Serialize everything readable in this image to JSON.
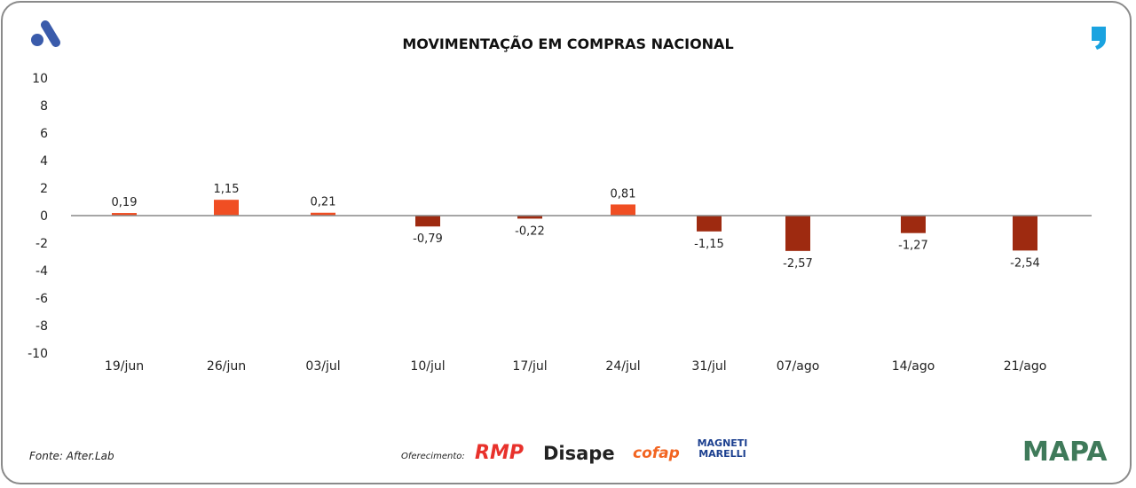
{
  "chart_data": {
    "type": "bar",
    "title": "MOVIMENTAÇÃO EM COMPRAS NACIONAL",
    "categories": [
      "19/jun",
      "26/jun",
      "03/jul",
      "10/jul",
      "17/jul",
      "24/jul",
      "31/jul",
      "07/ago",
      "14/ago",
      "21/ago"
    ],
    "values": [
      0.19,
      1.15,
      0.21,
      -0.79,
      -0.22,
      0.81,
      -1.15,
      -2.57,
      -1.27,
      -2.54
    ],
    "value_labels": [
      "0,19",
      "1,15",
      "0,21",
      "-0,79",
      "-0,22",
      "0,81",
      "-1,15",
      "-2,57",
      "-1,27",
      "-2,54"
    ],
    "ylim": [
      -10,
      10
    ],
    "yticks": [
      10,
      8,
      6,
      4,
      2,
      0,
      -2,
      -4,
      -6,
      -8,
      -10
    ],
    "xlabel": "",
    "ylabel": "",
    "grid": false,
    "colors": {
      "positive": "#f04e23",
      "negative": "#9e2a10",
      "axis": "#888888"
    }
  },
  "footer": {
    "source": "Fonte: After.Lab",
    "sponsor_label": "Oferecimento:",
    "sponsors": [
      "RMP",
      "Disape",
      "cofap",
      "MAGNETI MARELLI"
    ],
    "brand": "MAPA"
  }
}
